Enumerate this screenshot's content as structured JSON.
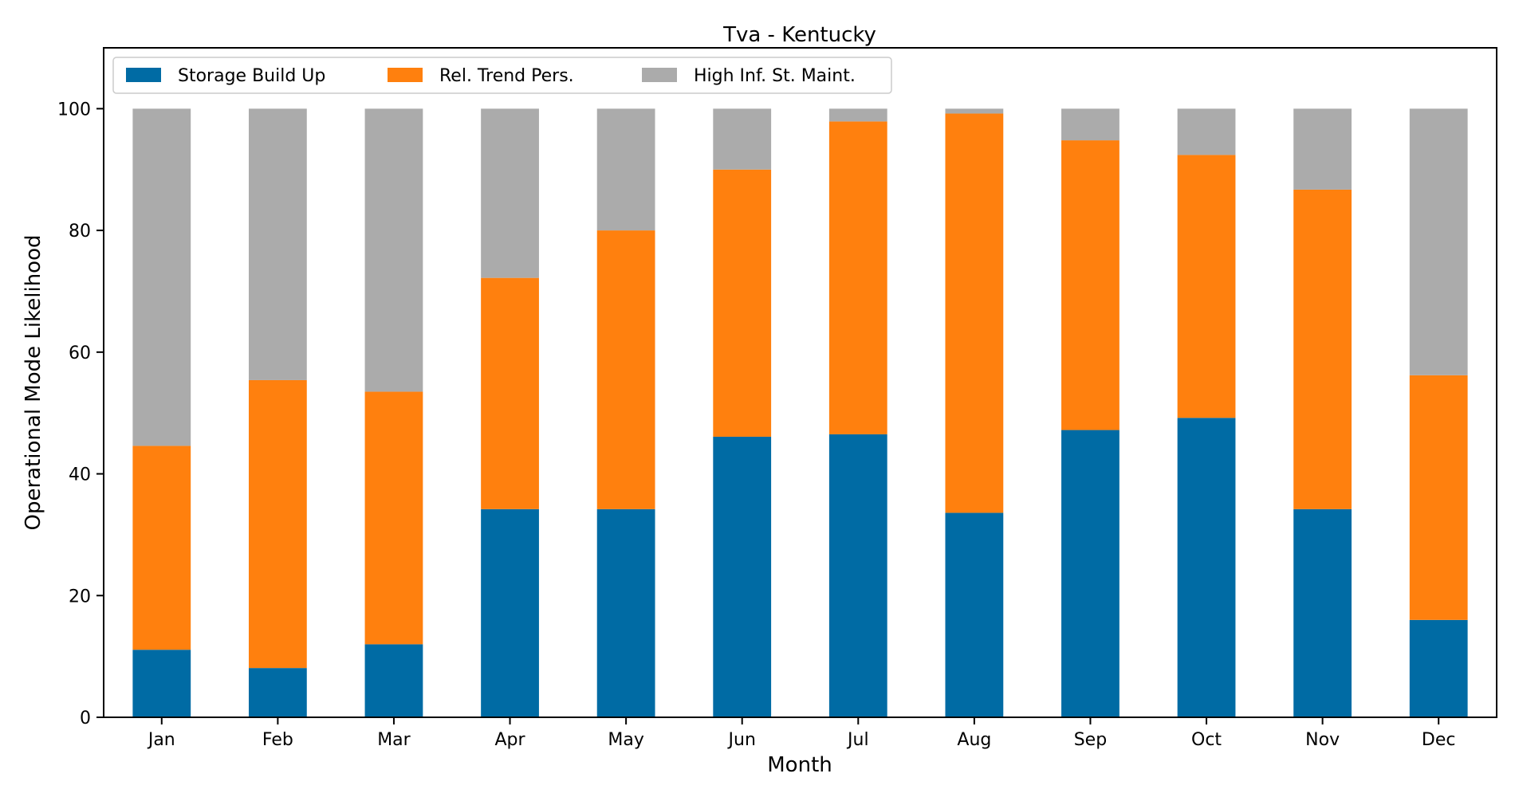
{
  "chart_data": {
    "type": "bar",
    "stacked": true,
    "title": "Tva - Kentucky",
    "xlabel": "Month",
    "ylabel": "Operational Mode Likelihood",
    "ylim": [
      0,
      110
    ],
    "yticks": [
      0,
      20,
      40,
      60,
      80,
      100
    ],
    "grid": false,
    "legend_position": "top-left",
    "categories": [
      "Jan",
      "Feb",
      "Mar",
      "Apr",
      "May",
      "Jun",
      "Jul",
      "Aug",
      "Sep",
      "Oct",
      "Nov",
      "Dec"
    ],
    "series": [
      {
        "name": "Storage Build Up",
        "color": "#006BA4",
        "values": [
          11.1,
          8.1,
          12.0,
          34.2,
          34.2,
          46.1,
          46.5,
          33.6,
          47.2,
          49.2,
          34.2,
          16.0
        ]
      },
      {
        "name": "Rel. Trend Pers.",
        "color": "#FF800E",
        "values": [
          33.5,
          47.3,
          41.5,
          38.0,
          45.8,
          43.9,
          51.4,
          65.6,
          47.6,
          43.2,
          52.5,
          40.2
        ]
      },
      {
        "name": "High Inf. St. Maint.",
        "color": "#ABABAB",
        "values": [
          55.4,
          44.6,
          46.5,
          27.8,
          20.0,
          10.0,
          2.1,
          0.8,
          5.2,
          7.6,
          13.3,
          43.8
        ]
      }
    ]
  }
}
